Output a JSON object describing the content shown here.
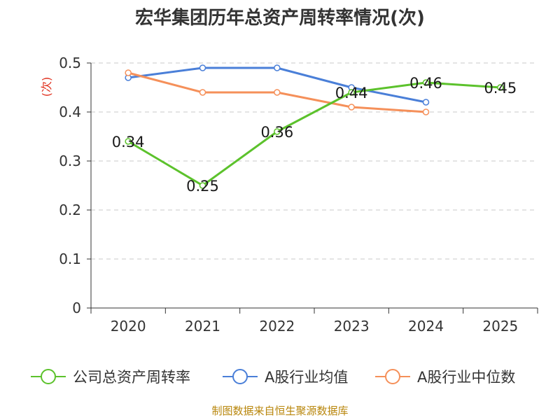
{
  "chart_data": {
    "type": "line",
    "title": "宏华集团历年总资产周转率情况(次)",
    "ylabel": "(次)",
    "xlabel": "",
    "categories": [
      "2020",
      "2021",
      "2022",
      "2023",
      "2024",
      "2025"
    ],
    "ylim": [
      0,
      0.5
    ],
    "yticks": [
      "0",
      "0.1",
      "0.2",
      "0.3",
      "0.4",
      "0.5"
    ],
    "grid": true,
    "legend_position": "bottom",
    "series": [
      {
        "name": "公司总资产周转率",
        "color": "#5cc22c",
        "values": [
          0.34,
          0.25,
          0.36,
          0.44,
          0.46,
          0.45
        ],
        "labels": [
          "0.34",
          "0.25",
          "0.36",
          "0.44",
          "0.46",
          "0.45"
        ]
      },
      {
        "name": "A股行业均值",
        "color": "#4a7fd8",
        "values": [
          0.47,
          0.49,
          0.49,
          0.45,
          0.42,
          null
        ],
        "labels": null
      },
      {
        "name": "A股行业中位数",
        "color": "#f5905a",
        "values": [
          0.48,
          0.44,
          0.44,
          0.41,
          0.4,
          null
        ],
        "labels": null
      }
    ]
  },
  "footer": {
    "source": "制图数据来自恒生聚源数据库"
  }
}
